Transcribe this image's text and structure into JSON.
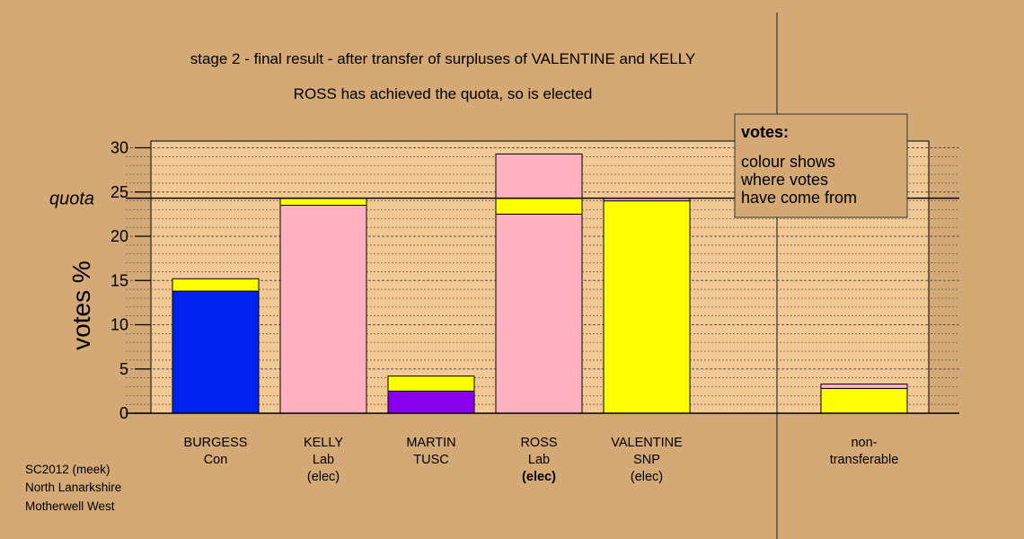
{
  "chart_data": {
    "type": "bar",
    "stacked": true,
    "title": "stage 2 - final result - after transfer of surpluses of VALENTINE and KELLY",
    "subtitle": "ROSS has achieved the quota, so is elected",
    "ylabel": "votes %",
    "ylim": [
      0,
      30
    ],
    "yticks": [
      "0",
      "5",
      "10",
      "15",
      "20",
      "25",
      "30"
    ],
    "quota_label": "quota",
    "quota_value": 24.3,
    "grid": true,
    "categories": [
      {
        "name": "BURGESS",
        "party": "Con",
        "status": "",
        "segments": [
          {
            "color": "#0022ee",
            "value": 13.8
          },
          {
            "color": "#ffff00",
            "value": 1.4
          }
        ]
      },
      {
        "name": "KELLY",
        "party": "Lab",
        "status": "(elec)",
        "segments": [
          {
            "color": "#ffb0c0",
            "value": 23.5
          },
          {
            "color": "#ffff00",
            "value": 0.8
          }
        ]
      },
      {
        "name": "MARTIN",
        "party": "TUSC",
        "status": "",
        "segments": [
          {
            "color": "#8800ee",
            "value": 2.5
          },
          {
            "color": "#ffff00",
            "value": 1.7
          }
        ]
      },
      {
        "name": "ROSS",
        "party": "Lab",
        "status": "(elec)",
        "segments": [
          {
            "color": "#ffb0c0",
            "value": 22.5
          },
          {
            "color": "#ffff00",
            "value": 1.8
          },
          {
            "color": "#ffb0c0",
            "value": 5.0
          }
        ]
      },
      {
        "name": "VALENTINE",
        "party": "SNP",
        "status": "(elec)",
        "segments": [
          {
            "color": "#ffff00",
            "value": 24.0
          },
          {
            "color": "#ffb0c0",
            "value": 0.3
          }
        ]
      },
      {
        "name": "non-",
        "party": "transferable",
        "status": "",
        "segments": [
          {
            "color": "#ffff00",
            "value": 2.8
          },
          {
            "color": "#ffb0c0",
            "value": 0.5
          }
        ]
      }
    ],
    "legend": {
      "title": "votes:",
      "lines": [
        "colour shows",
        "where votes",
        "have come from"
      ]
    },
    "source_lines": [
      "SC2012 (meek)",
      "North Lanarkshire",
      "Motherwell West"
    ]
  }
}
